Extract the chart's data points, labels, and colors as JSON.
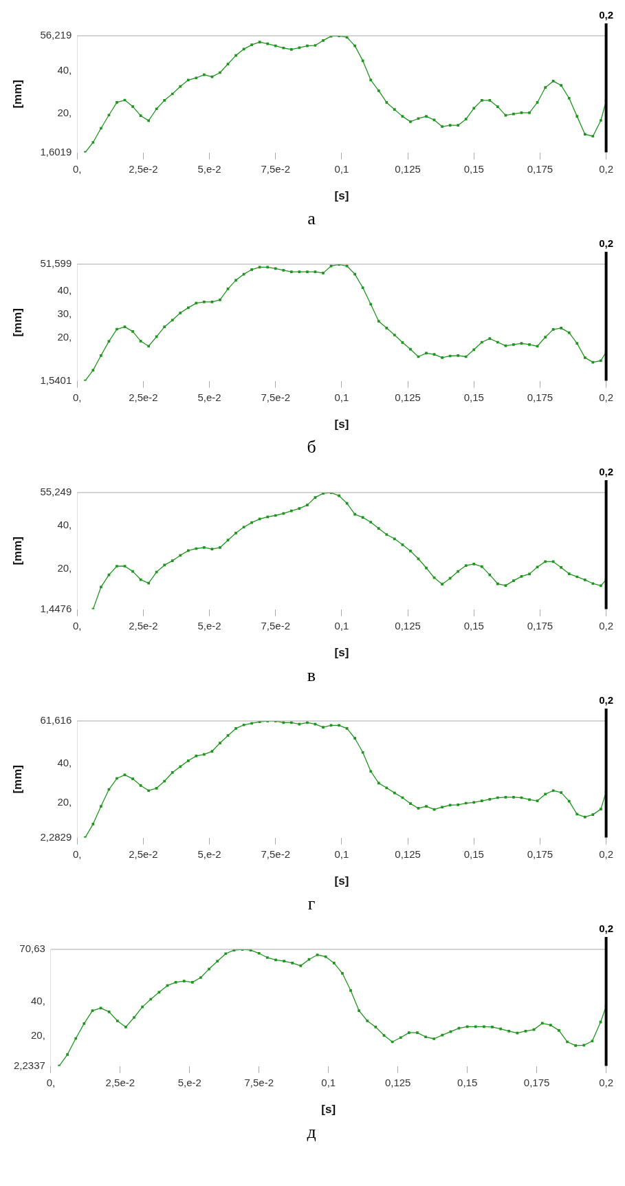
{
  "chart_data": [
    {
      "type": "line",
      "xlabel": "[s]",
      "ylabel": "[mm]",
      "annotations": [
        "а"
      ],
      "marker": "square",
      "line_style": "solid",
      "grid": false,
      "legend": false,
      "x": [
        0.003,
        0.006,
        0.009,
        0.012,
        0.015,
        0.018,
        0.021,
        0.024,
        0.027,
        0.03,
        0.033,
        0.036,
        0.039,
        0.042,
        0.045,
        0.048,
        0.051,
        0.054,
        0.057,
        0.06,
        0.063,
        0.066,
        0.069,
        0.072,
        0.075,
        0.078,
        0.081,
        0.084,
        0.087,
        0.09,
        0.093,
        0.096,
        0.099,
        0.102,
        0.105,
        0.108,
        0.111,
        0.114,
        0.117,
        0.12,
        0.123,
        0.126,
        0.129,
        0.132,
        0.135,
        0.138,
        0.141,
        0.144,
        0.147,
        0.15,
        0.153,
        0.156,
        0.159,
        0.162,
        0.165,
        0.168,
        0.171,
        0.174,
        0.177,
        0.18,
        0.183,
        0.186,
        0.189,
        0.192,
        0.195,
        0.198,
        0.2
      ],
      "xlim": [
        0,
        0.2
      ],
      "xticks": [
        {
          "value": 0,
          "label": "0,"
        },
        {
          "value": 0.025,
          "label": "2,5e-2"
        },
        {
          "value": 0.05,
          "label": "5,e-2"
        },
        {
          "value": 0.075,
          "label": "7,5e-2"
        },
        {
          "value": 0.1,
          "label": "0,1"
        },
        {
          "value": 0.125,
          "label": "0,125"
        },
        {
          "value": 0.15,
          "label": "0,15"
        },
        {
          "value": 0.175,
          "label": "0,175"
        },
        {
          "value": 0.2,
          "label": "0,2"
        }
      ],
      "ylim": [
        1.6019,
        56.219
      ],
      "yticks": [
        {
          "value": 1.6019,
          "label": "1,6019"
        },
        {
          "value": 20,
          "label": "20,"
        },
        {
          "value": 40,
          "label": "40,"
        },
        {
          "value": 56.219,
          "label": "56,219"
        }
      ],
      "ref_lines": [
        {
          "axis": "x",
          "value": 0.2,
          "label": "0,2",
          "color": "#000000"
        }
      ],
      "series": [
        {
          "color": "#1e961e",
          "values": [
            1.6019,
            6.3,
            12.9,
            19.1,
            25,
            26.1,
            23.1,
            18.8,
            16.5,
            22,
            26,
            29,
            32.5,
            35.5,
            36.5,
            38,
            37,
            39,
            43,
            47,
            50,
            52,
            53.3,
            52.5,
            51.5,
            50.5,
            49.8,
            50.6,
            51.5,
            51.7,
            54,
            56,
            56.2,
            55.5,
            51.5,
            44.5,
            35.5,
            30.5,
            25,
            21.7,
            18.5,
            16,
            17.5,
            18.5,
            16.8,
            13.7,
            14.3,
            14.3,
            17.2,
            22.3,
            26,
            26,
            23,
            19,
            19.6,
            20.2,
            20.2,
            25,
            32,
            35,
            33,
            27,
            18.5,
            10.1,
            9.2,
            16.6,
            25.7
          ]
        }
      ]
    },
    {
      "type": "line",
      "xlabel": "[s]",
      "ylabel": "[mm]",
      "annotations": [
        "б"
      ],
      "marker": "square",
      "line_style": "solid",
      "grid": false,
      "legend": false,
      "x": [
        0.003,
        0.006,
        0.009,
        0.012,
        0.015,
        0.018,
        0.021,
        0.024,
        0.027,
        0.03,
        0.033,
        0.036,
        0.039,
        0.042,
        0.045,
        0.048,
        0.051,
        0.054,
        0.057,
        0.06,
        0.063,
        0.066,
        0.069,
        0.072,
        0.075,
        0.078,
        0.081,
        0.084,
        0.087,
        0.09,
        0.093,
        0.096,
        0.099,
        0.102,
        0.105,
        0.108,
        0.111,
        0.114,
        0.117,
        0.12,
        0.123,
        0.126,
        0.129,
        0.132,
        0.135,
        0.138,
        0.141,
        0.144,
        0.147,
        0.15,
        0.153,
        0.156,
        0.159,
        0.162,
        0.165,
        0.168,
        0.171,
        0.174,
        0.177,
        0.18,
        0.183,
        0.186,
        0.189,
        0.192,
        0.195,
        0.198,
        0.2
      ],
      "xlim": [
        0,
        0.2
      ],
      "xticks": [
        {
          "value": 0,
          "label": "0,"
        },
        {
          "value": 0.025,
          "label": "2,5e-2"
        },
        {
          "value": 0.05,
          "label": "5,e-2"
        },
        {
          "value": 0.075,
          "label": "7,5e-2"
        },
        {
          "value": 0.1,
          "label": "0,1"
        },
        {
          "value": 0.125,
          "label": "0,125"
        },
        {
          "value": 0.15,
          "label": "0,15"
        },
        {
          "value": 0.175,
          "label": "0,175"
        },
        {
          "value": 0.2,
          "label": "0,2"
        }
      ],
      "ylim": [
        1.5401,
        51.599
      ],
      "yticks": [
        {
          "value": 1.5401,
          "label": "1,5401"
        },
        {
          "value": 20,
          "label": "20,"
        },
        {
          "value": 30,
          "label": "30,"
        },
        {
          "value": 40,
          "label": "40,"
        },
        {
          "value": 51.599,
          "label": "51,599"
        }
      ],
      "ref_lines": [
        {
          "axis": "x",
          "value": 0.2,
          "label": "0,2",
          "color": "#000000"
        }
      ],
      "series": [
        {
          "color": "#1e961e",
          "values": [
            1.5401,
            6.1,
            12.4,
            18.5,
            23.7,
            24.7,
            22.7,
            18.6,
            16.4,
            20.5,
            24.7,
            27.6,
            30.7,
            32.9,
            34.9,
            35.4,
            35.4,
            36.3,
            41,
            44.7,
            47.3,
            49.3,
            50.3,
            50.3,
            49.7,
            49,
            48.3,
            48.3,
            48.3,
            48.3,
            47.8,
            50.8,
            51.5,
            50.8,
            47.3,
            41.5,
            34.4,
            27.1,
            24.2,
            21.2,
            18,
            15.1,
            11.9,
            13.4,
            12.9,
            11.5,
            12.2,
            12.4,
            11.9,
            14.9,
            18.1,
            19.7,
            18.1,
            16.6,
            17.1,
            17.6,
            17.1,
            16.4,
            20.3,
            23.6,
            24.2,
            22.2,
            17.6,
            11.5,
            9.5,
            10.2,
            13.9
          ]
        }
      ]
    },
    {
      "type": "line",
      "xlabel": "[s]",
      "ylabel": "[mm]",
      "annotations": [
        "в"
      ],
      "marker": "square",
      "line_style": "solid",
      "grid": false,
      "legend": false,
      "x": [
        0.006,
        0.009,
        0.012,
        0.015,
        0.018,
        0.021,
        0.024,
        0.027,
        0.03,
        0.033,
        0.036,
        0.039,
        0.042,
        0.045,
        0.048,
        0.051,
        0.054,
        0.057,
        0.06,
        0.063,
        0.066,
        0.069,
        0.072,
        0.075,
        0.078,
        0.081,
        0.084,
        0.087,
        0.09,
        0.093,
        0.096,
        0.099,
        0.102,
        0.105,
        0.108,
        0.111,
        0.114,
        0.117,
        0.12,
        0.123,
        0.126,
        0.129,
        0.132,
        0.135,
        0.138,
        0.141,
        0.144,
        0.147,
        0.15,
        0.153,
        0.156,
        0.159,
        0.162,
        0.165,
        0.168,
        0.171,
        0.174,
        0.177,
        0.18,
        0.183,
        0.186,
        0.189,
        0.192,
        0.195,
        0.198,
        0.2
      ],
      "xlim": [
        0,
        0.2
      ],
      "xticks": [
        {
          "value": 0,
          "label": "0,"
        },
        {
          "value": 0.025,
          "label": "2,5e-2"
        },
        {
          "value": 0.05,
          "label": "5,e-2"
        },
        {
          "value": 0.075,
          "label": "7,5e-2"
        },
        {
          "value": 0.1,
          "label": "0,1"
        },
        {
          "value": 0.125,
          "label": "0,125"
        },
        {
          "value": 0.15,
          "label": "0,15"
        },
        {
          "value": 0.175,
          "label": "0,175"
        },
        {
          "value": 0.2,
          "label": "0,2"
        }
      ],
      "ylim": [
        1.4476,
        55.249
      ],
      "yticks": [
        {
          "value": 1.4476,
          "label": "1,4476"
        },
        {
          "value": 20,
          "label": "20,"
        },
        {
          "value": 40,
          "label": "40,"
        },
        {
          "value": 55.249,
          "label": "55,249"
        }
      ],
      "ref_lines": [
        {
          "axis": "x",
          "value": 0.2,
          "label": "0,2",
          "color": "#000000"
        }
      ],
      "series": [
        {
          "color": "#1e961e",
          "values": [
            1.4476,
            11.7,
            17.3,
            21.3,
            21.3,
            18.9,
            15.1,
            13.5,
            18.6,
            21.8,
            23.8,
            26.3,
            28.5,
            29.4,
            29.9,
            29.2,
            29.9,
            33.3,
            36.6,
            39.3,
            41.4,
            43.1,
            44,
            44.7,
            45.6,
            46.8,
            47.9,
            49.5,
            53,
            54.9,
            55.2,
            53.8,
            50.3,
            45.2,
            43.8,
            41.6,
            38.7,
            35.9,
            33.9,
            31.2,
            28.3,
            24.7,
            20.5,
            16,
            13,
            15.7,
            18.9,
            21.6,
            22.3,
            21.1,
            17.3,
            13.2,
            12.4,
            14.6,
            16.6,
            17.7,
            20.9,
            23.4,
            23.4,
            20.7,
            17.8,
            16.4,
            15,
            13.3,
            12.3,
            15
          ]
        }
      ]
    },
    {
      "type": "line",
      "xlabel": "[s]",
      "ylabel": "[mm]",
      "annotations": [
        "г"
      ],
      "marker": "square",
      "line_style": "solid",
      "grid": false,
      "legend": false,
      "x": [
        0.003,
        0.006,
        0.009,
        0.012,
        0.015,
        0.018,
        0.021,
        0.024,
        0.027,
        0.03,
        0.033,
        0.036,
        0.039,
        0.042,
        0.045,
        0.048,
        0.051,
        0.054,
        0.057,
        0.06,
        0.063,
        0.066,
        0.069,
        0.072,
        0.075,
        0.078,
        0.081,
        0.084,
        0.087,
        0.09,
        0.093,
        0.096,
        0.099,
        0.102,
        0.105,
        0.108,
        0.111,
        0.114,
        0.117,
        0.12,
        0.123,
        0.126,
        0.129,
        0.132,
        0.135,
        0.138,
        0.141,
        0.144,
        0.147,
        0.15,
        0.153,
        0.156,
        0.159,
        0.162,
        0.165,
        0.168,
        0.171,
        0.174,
        0.177,
        0.18,
        0.183,
        0.186,
        0.189,
        0.192,
        0.195,
        0.198,
        0.2
      ],
      "xlim": [
        0,
        0.2
      ],
      "xticks": [
        {
          "value": 0,
          "label": "0,"
        },
        {
          "value": 0.025,
          "label": "2,5e-2"
        },
        {
          "value": 0.05,
          "label": "5,e-2"
        },
        {
          "value": 0.075,
          "label": "7,5e-2"
        },
        {
          "value": 0.1,
          "label": "0,1"
        },
        {
          "value": 0.125,
          "label": "0,125"
        },
        {
          "value": 0.15,
          "label": "0,15"
        },
        {
          "value": 0.175,
          "label": "0,175"
        },
        {
          "value": 0.2,
          "label": "0,2"
        }
      ],
      "ylim": [
        2.2829,
        61.616
      ],
      "yticks": [
        {
          "value": 2.2829,
          "label": "2,2829"
        },
        {
          "value": 20,
          "label": "20,"
        },
        {
          "value": 40,
          "label": "40,"
        },
        {
          "value": 61.616,
          "label": "61,616"
        }
      ],
      "ref_lines": [
        {
          "axis": "x",
          "value": 0.2,
          "label": "0,2",
          "color": "#000000"
        }
      ],
      "series": [
        {
          "color": "#1e961e",
          "values": [
            2.2829,
            9.2,
            18.2,
            26.8,
            32.4,
            34.2,
            32.2,
            28.8,
            26.2,
            27.4,
            31,
            35.4,
            38.4,
            41.4,
            43.8,
            44.6,
            46.2,
            50.4,
            54.2,
            57.8,
            59.6,
            60.4,
            61.2,
            61.6,
            61.6,
            60.8,
            60.8,
            60,
            60.8,
            60,
            58.4,
            59.4,
            59.4,
            57.8,
            52.8,
            45.6,
            36,
            30,
            27.6,
            25,
            22.6,
            19.6,
            17.2,
            18.2,
            16.6,
            17.8,
            18.8,
            19,
            19.8,
            20.2,
            21,
            21.8,
            22.6,
            22.8,
            22.8,
            22.6,
            21.6,
            21,
            24.4,
            26.2,
            25.2,
            20.8,
            14.2,
            12.8,
            14,
            16.8,
            25.6
          ]
        }
      ]
    },
    {
      "type": "line",
      "xlabel": "[s]",
      "annotations": [
        "д"
      ],
      "marker": "square",
      "line_style": "solid",
      "grid": false,
      "legend": false,
      "x": [
        0.003,
        0.006,
        0.009,
        0.012,
        0.015,
        0.018,
        0.021,
        0.024,
        0.027,
        0.03,
        0.033,
        0.036,
        0.039,
        0.042,
        0.045,
        0.048,
        0.051,
        0.054,
        0.057,
        0.06,
        0.063,
        0.066,
        0.069,
        0.072,
        0.075,
        0.078,
        0.081,
        0.084,
        0.087,
        0.09,
        0.093,
        0.096,
        0.099,
        0.102,
        0.105,
        0.108,
        0.111,
        0.114,
        0.117,
        0.12,
        0.123,
        0.126,
        0.129,
        0.132,
        0.135,
        0.138,
        0.141,
        0.144,
        0.147,
        0.15,
        0.153,
        0.156,
        0.159,
        0.162,
        0.165,
        0.168,
        0.171,
        0.174,
        0.177,
        0.18,
        0.183,
        0.186,
        0.189,
        0.192,
        0.195,
        0.198,
        0.2
      ],
      "xlim": [
        0,
        0.2
      ],
      "xticks": [
        {
          "value": 0,
          "label": "0,"
        },
        {
          "value": 0.025,
          "label": "2,5e-2"
        },
        {
          "value": 0.05,
          "label": "5,e-2"
        },
        {
          "value": 0.075,
          "label": "7,5e-2"
        },
        {
          "value": 0.1,
          "label": "0,1"
        },
        {
          "value": 0.125,
          "label": "0,125"
        },
        {
          "value": 0.15,
          "label": "0,15"
        },
        {
          "value": 0.175,
          "label": "0,175"
        },
        {
          "value": 0.2,
          "label": "0,2"
        }
      ],
      "ylim": [
        2.2337,
        70.63
      ],
      "yticks": [
        {
          "value": 2.2337,
          "label": "2,2337"
        },
        {
          "value": 20,
          "label": "20,"
        },
        {
          "value": 40,
          "label": "40,"
        },
        {
          "value": 70.63,
          "label": "70,63"
        }
      ],
      "ref_lines": [
        {
          "axis": "x",
          "value": 0.2,
          "label": "0,2",
          "color": "#000000"
        }
      ],
      "series": [
        {
          "color": "#1e961e",
          "values": [
            2.2337,
            9,
            18.4,
            27.1,
            34.7,
            36.2,
            34,
            28.7,
            25.1,
            30.7,
            36.9,
            41.4,
            45.5,
            49.4,
            51.3,
            52,
            51.3,
            54.1,
            59.1,
            63.7,
            68.1,
            70.2,
            70.6,
            70.2,
            68.3,
            65.8,
            64.4,
            63.7,
            62.6,
            61,
            64.7,
            67.4,
            66.3,
            62.6,
            56.6,
            46.5,
            34.7,
            28.7,
            25.1,
            20.2,
            16.4,
            18.9,
            21.8,
            21.8,
            19.3,
            18.2,
            20.4,
            22.4,
            24.4,
            25.3,
            25.3,
            25.3,
            25.1,
            24,
            22.7,
            21.6,
            22.7,
            23.6,
            27.3,
            26.2,
            23.1,
            16.4,
            14.2,
            14.4,
            16.9,
            28,
            37.3
          ]
        }
      ]
    }
  ]
}
